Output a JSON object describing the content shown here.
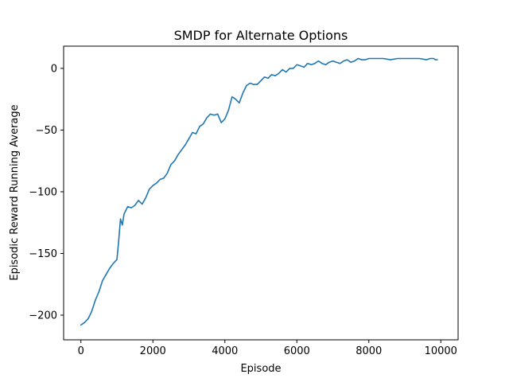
{
  "chart_data": {
    "type": "line",
    "title": "SMDP for Alternate Options",
    "xlabel": "Episode",
    "ylabel": "Episodic Reward Running Average",
    "xlim": [
      -480,
      10480
    ],
    "ylim": [
      -220,
      18
    ],
    "x_ticks": [
      0,
      2000,
      4000,
      6000,
      8000,
      10000
    ],
    "x_tick_labels": [
      "0",
      "2000",
      "4000",
      "6000",
      "8000",
      "10000"
    ],
    "y_ticks": [
      -200,
      -150,
      -100,
      -50,
      0
    ],
    "y_tick_labels": [
      "−200",
      "−150",
      "−100",
      "−50",
      "0"
    ],
    "grid": false,
    "series": [
      {
        "color": "#1f77b4",
        "x": [
          0,
          100,
          200,
          300,
          400,
          500,
          600,
          700,
          800,
          900,
          1000,
          1050,
          1100,
          1150,
          1200,
          1300,
          1400,
          1500,
          1600,
          1700,
          1800,
          1900,
          2000,
          2100,
          2200,
          2300,
          2400,
          2500,
          2600,
          2700,
          2800,
          2900,
          3000,
          3100,
          3200,
          3300,
          3400,
          3500,
          3600,
          3700,
          3800,
          3900,
          4000,
          4100,
          4200,
          4300,
          4400,
          4500,
          4600,
          4700,
          4800,
          4900,
          5000,
          5100,
          5200,
          5300,
          5400,
          5500,
          5600,
          5700,
          5800,
          5900,
          6000,
          6100,
          6200,
          6300,
          6400,
          6500,
          6600,
          6700,
          6800,
          6900,
          7000,
          7100,
          7200,
          7300,
          7400,
          7500,
          7600,
          7700,
          7800,
          7900,
          8000,
          8200,
          8400,
          8600,
          8800,
          9000,
          9200,
          9400,
          9600,
          9700,
          9800,
          9850,
          9900
        ],
        "values": [
          -208,
          -206,
          -203,
          -197,
          -188,
          -181,
          -172,
          -167,
          -162,
          -158,
          -155,
          -140,
          -122,
          -127,
          -118,
          -112,
          -113,
          -111,
          -107,
          -110,
          -105,
          -98,
          -95,
          -93,
          -90,
          -89,
          -85,
          -78,
          -75,
          -70,
          -66,
          -62,
          -57,
          -52,
          -53,
          -47,
          -45,
          -40,
          -37,
          -38,
          -37,
          -44,
          -41,
          -34,
          -23,
          -25,
          -28,
          -20,
          -14,
          -12,
          -13,
          -13,
          -10,
          -7,
          -8,
          -5,
          -6,
          -4,
          -1,
          -3,
          0,
          0,
          3,
          2,
          1,
          4,
          3,
          4,
          6,
          4,
          3,
          5,
          6,
          5,
          4,
          6,
          7,
          5,
          6,
          8,
          7,
          7,
          8,
          8,
          8,
          7,
          8,
          8,
          8,
          8,
          7,
          8,
          8,
          7,
          7
        ]
      }
    ]
  }
}
